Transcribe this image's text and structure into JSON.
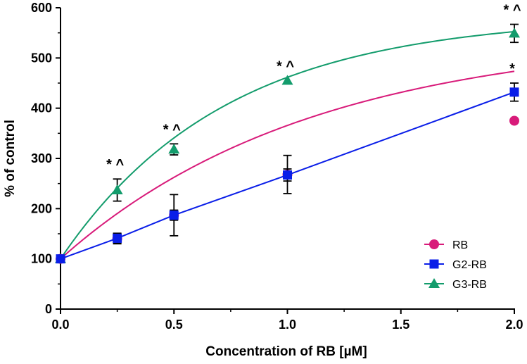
{
  "chart_data": {
    "type": "line",
    "title": "",
    "xlabel": "Concentration of RB [µM]",
    "ylabel": "% of control",
    "xlim": [
      0,
      2
    ],
    "ylim": [
      0,
      600
    ],
    "x_ticks": [
      {
        "value": 0,
        "label": "0.0"
      },
      {
        "value": 0.5,
        "label": "0.5"
      },
      {
        "value": 1.0,
        "label": "1.0"
      },
      {
        "value": 1.5,
        "label": "1.5"
      },
      {
        "value": 2.0,
        "label": "2.0"
      }
    ],
    "y_ticks": [
      {
        "value": 0,
        "label": "0"
      },
      {
        "value": 100,
        "label": "100"
      },
      {
        "value": 200,
        "label": "200"
      },
      {
        "value": 300,
        "label": "300"
      },
      {
        "value": 400,
        "label": "400"
      },
      {
        "value": 500,
        "label": "500"
      },
      {
        "value": 600,
        "label": "600"
      }
    ],
    "grid": false,
    "legend_position": "bottom-right",
    "series": [
      {
        "name": "RB",
        "color": "#d81b7a",
        "marker": "circle",
        "x": [
          0,
          0.25,
          0.5,
          1.0,
          2.0
        ],
        "y": [
          100,
          140,
          187,
          268,
          375
        ],
        "error": [
          0,
          10,
          41,
          38,
          0
        ],
        "fit": {
          "model": "one-phase-association",
          "plateau_gain": 447,
          "k": 0.902
        }
      },
      {
        "name": "G2-RB",
        "color": "#0a1ee8",
        "marker": "square",
        "x": [
          0,
          0.25,
          0.5,
          1.0,
          2.0
        ],
        "y": [
          100,
          141,
          187,
          267,
          432
        ],
        "error": [
          0,
          10,
          10,
          12,
          18
        ],
        "fit": {
          "model": "polyline"
        }
      },
      {
        "name": "G3-RB",
        "color": "#139c6c",
        "marker": "triangle",
        "x": [
          0,
          0.25,
          0.5,
          1.0,
          2.0
        ],
        "y": [
          100,
          237,
          318,
          455,
          549
        ],
        "error": [
          0,
          22,
          11,
          0,
          18
        ],
        "fit": {
          "model": "one-phase-association",
          "plateau_gain": 483,
          "k": 1.38
        }
      }
    ],
    "annotations": [
      {
        "x": 0.25,
        "y": 237,
        "text": "* ^",
        "series": "G3-RB"
      },
      {
        "x": 0.5,
        "y": 318,
        "text": "* ^",
        "series": "G3-RB"
      },
      {
        "x": 1.0,
        "y": 455,
        "text": "* ^",
        "series": "G3-RB"
      },
      {
        "x": 2.0,
        "y": 549,
        "text": "* ^",
        "series": "G3-RB"
      },
      {
        "x": 2.0,
        "y": 432,
        "text": "*",
        "series": "G2-RB"
      }
    ]
  }
}
